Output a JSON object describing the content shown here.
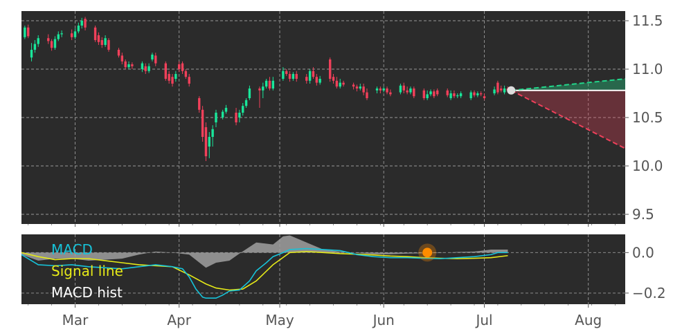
{
  "colors": {
    "panel_bg": "#2b2b2b",
    "grid": "#9a9a9a",
    "up": "#19e69a",
    "down": "#f0405a",
    "macd": "#17c3d9",
    "signal": "#e6ea18",
    "hist": "#a0a0a0",
    "marker": "#ff8c00",
    "last_point": "#dddddd",
    "upper_proj": "#22d68a",
    "lower_proj": "#f0405a"
  },
  "chart_data": [
    {
      "type": "candlestick",
      "title": "",
      "xlabel": "",
      "ylabel": "",
      "x_ticks": [
        "Mar",
        "Apr",
        "May",
        "Jun",
        "Jul",
        "Aug"
      ],
      "x_tick_days": [
        16,
        47,
        77,
        108,
        138,
        169
      ],
      "xlim": [
        0,
        180
      ],
      "ylim": [
        9.4,
        11.6
      ],
      "y_ticks": [
        9.5,
        10.0,
        10.5,
        11.0,
        11.5
      ],
      "grid": true,
      "candles": [
        [
          1,
          11.33,
          11.43,
          11.45,
          11.31
        ],
        [
          2,
          11.43,
          11.34,
          11.46,
          11.32
        ],
        [
          3,
          11.12,
          11.2,
          11.27,
          11.08
        ],
        [
          4,
          11.2,
          11.26,
          11.3,
          11.17
        ],
        [
          5,
          11.26,
          11.32,
          11.35,
          11.23
        ],
        [
          8,
          11.32,
          11.29,
          11.36,
          11.26
        ],
        [
          9,
          11.29,
          11.22,
          11.31,
          11.19
        ],
        [
          10,
          11.22,
          11.31,
          11.34,
          11.2
        ],
        [
          11,
          11.31,
          11.36,
          11.39,
          11.29
        ],
        [
          12,
          11.36,
          11.37,
          11.4,
          11.33
        ],
        [
          15,
          11.37,
          11.33,
          11.41,
          11.3
        ],
        [
          16,
          11.33,
          11.39,
          11.42,
          11.31
        ],
        [
          17,
          11.39,
          11.45,
          11.48,
          11.37
        ],
        [
          18,
          11.45,
          11.5,
          11.53,
          11.42
        ],
        [
          19,
          11.52,
          11.43,
          11.54,
          11.4
        ],
        [
          22,
          11.43,
          11.3,
          11.45,
          11.28
        ],
        [
          23,
          11.35,
          11.28,
          11.38,
          11.25
        ],
        [
          24,
          11.3,
          11.25,
          11.33,
          11.22
        ],
        [
          25,
          11.25,
          11.32,
          11.35,
          11.23
        ],
        [
          26,
          11.3,
          11.2,
          11.32,
          11.18
        ],
        [
          29,
          11.2,
          11.14,
          11.22,
          11.12
        ],
        [
          30,
          11.14,
          11.08,
          11.17,
          11.05
        ],
        [
          31,
          11.08,
          11.02,
          11.1,
          11.0
        ],
        [
          32,
          11.02,
          11.05,
          11.08,
          11.0
        ],
        [
          33,
          11.05,
          11.03,
          11.07,
          11.0
        ],
        [
          36,
          11.0,
          11.06,
          11.08,
          10.97
        ],
        [
          37,
          11.03,
          10.98,
          11.06,
          10.95
        ],
        [
          38,
          10.98,
          11.03,
          11.06,
          10.96
        ],
        [
          39,
          11.1,
          11.15,
          11.17,
          11.08
        ],
        [
          40,
          11.14,
          11.06,
          11.17,
          11.03
        ],
        [
          43,
          11.06,
          10.9,
          11.08,
          10.88
        ],
        [
          44,
          10.95,
          10.88,
          10.98,
          10.85
        ],
        [
          45,
          10.92,
          10.85,
          10.95,
          10.82
        ],
        [
          46,
          10.9,
          10.95,
          10.98,
          10.87
        ],
        [
          47,
          11.05,
          11.0,
          11.08,
          10.97
        ],
        [
          48,
          11.06,
          10.98,
          11.08,
          10.95
        ],
        [
          49,
          10.98,
          10.92,
          11.0,
          10.9
        ],
        [
          50,
          10.92,
          10.85,
          10.95,
          10.82
        ],
        [
          53,
          10.7,
          10.58,
          10.72,
          10.55
        ],
        [
          54,
          10.58,
          10.3,
          10.62,
          10.25
        ],
        [
          55,
          10.4,
          10.1,
          10.45,
          10.05
        ],
        [
          56,
          10.2,
          10.3,
          10.35,
          10.08
        ],
        [
          57,
          10.3,
          10.38,
          10.42,
          10.2
        ],
        [
          58,
          10.45,
          10.55,
          10.58,
          10.4
        ],
        [
          60,
          10.5,
          10.56,
          10.58,
          10.48
        ],
        [
          61,
          10.56,
          10.6,
          10.63,
          10.54
        ],
        [
          64,
          10.55,
          10.45,
          10.6,
          10.42
        ],
        [
          65,
          10.5,
          10.55,
          10.58,
          10.45
        ],
        [
          66,
          10.55,
          10.62,
          10.65,
          10.52
        ],
        [
          67,
          10.62,
          10.68,
          10.7,
          10.6
        ],
        [
          68,
          10.7,
          10.8,
          10.83,
          10.68
        ],
        [
          71,
          10.8,
          10.78,
          10.82,
          10.6
        ],
        [
          72,
          10.78,
          10.82,
          10.86,
          10.7
        ],
        [
          73,
          10.82,
          10.88,
          10.9,
          10.8
        ],
        [
          74,
          10.88,
          10.8,
          10.92,
          10.78
        ],
        [
          75,
          10.8,
          10.88,
          10.92,
          10.78
        ],
        [
          78,
          10.9,
          10.98,
          11.02,
          10.88
        ],
        [
          79,
          10.98,
          10.95,
          11.0,
          10.93
        ],
        [
          80,
          10.95,
          10.9,
          10.98,
          10.87
        ],
        [
          81,
          10.9,
          10.95,
          10.97,
          10.88
        ],
        [
          82,
          10.95,
          10.9,
          10.98,
          10.87
        ],
        [
          85,
          10.92,
          10.88,
          10.95,
          10.85
        ],
        [
          86,
          10.88,
          10.98,
          11.0,
          10.85
        ],
        [
          87,
          10.98,
          10.92,
          11.02,
          10.9
        ],
        [
          88,
          10.92,
          10.86,
          10.95,
          10.83
        ],
        [
          89,
          10.86,
          10.9,
          10.93,
          10.84
        ],
        [
          92,
          11.1,
          10.9,
          11.12,
          10.87
        ],
        [
          93,
          10.92,
          10.88,
          10.95,
          10.85
        ],
        [
          94,
          10.88,
          10.82,
          10.92,
          10.8
        ],
        [
          95,
          10.82,
          10.86,
          10.9,
          10.8
        ],
        [
          96,
          10.86,
          10.84,
          10.88,
          10.82
        ],
        [
          99,
          10.84,
          10.82,
          10.86,
          10.79
        ],
        [
          100,
          10.82,
          10.8,
          10.84,
          10.77
        ],
        [
          101,
          10.8,
          10.82,
          10.85,
          10.78
        ],
        [
          102,
          10.82,
          10.76,
          10.85,
          10.73
        ],
        [
          103,
          10.76,
          10.7,
          10.8,
          10.68
        ],
        [
          106,
          10.78,
          10.8,
          10.82,
          10.75
        ],
        [
          107,
          10.8,
          10.78,
          10.82,
          10.75
        ],
        [
          108,
          10.78,
          10.8,
          10.82,
          10.76
        ],
        [
          109,
          10.8,
          10.76,
          10.82,
          10.74
        ],
        [
          110,
          10.76,
          10.74,
          10.79,
          10.72
        ],
        [
          113,
          10.76,
          10.83,
          10.85,
          10.74
        ],
        [
          114,
          10.83,
          10.78,
          10.86,
          10.75
        ],
        [
          115,
          10.78,
          10.76,
          10.82,
          10.74
        ],
        [
          116,
          10.76,
          10.8,
          10.82,
          10.74
        ],
        [
          117,
          10.8,
          10.72,
          10.82,
          10.7
        ],
        [
          120,
          10.78,
          10.7,
          10.8,
          10.68
        ],
        [
          121,
          10.7,
          10.74,
          10.78,
          10.68
        ],
        [
          122,
          10.74,
          10.77,
          10.79,
          10.72
        ],
        [
          123,
          10.77,
          10.72,
          10.79,
          10.7
        ],
        [
          124,
          10.78,
          10.74,
          10.8,
          10.72
        ],
        [
          127,
          10.78,
          10.73,
          10.8,
          10.71
        ],
        [
          128,
          10.7,
          10.75,
          10.78,
          10.68
        ],
        [
          129,
          10.75,
          10.72,
          10.78,
          10.7
        ],
        [
          130,
          10.72,
          10.73,
          10.75,
          10.7
        ],
        [
          131,
          10.72,
          10.75,
          10.77,
          10.7
        ],
        [
          134,
          10.7,
          10.76,
          10.78,
          10.68
        ],
        [
          135,
          10.76,
          10.73,
          10.78,
          10.71
        ],
        [
          136,
          10.73,
          10.75,
          10.77,
          10.71
        ],
        [
          137,
          10.75,
          10.74,
          10.77,
          10.72
        ],
        [
          138,
          10.72,
          10.7,
          10.75,
          10.68
        ],
        [
          141,
          10.75,
          10.79,
          10.82,
          10.73
        ],
        [
          142,
          10.86,
          10.76,
          10.88,
          10.74
        ],
        [
          143,
          10.8,
          10.78,
          10.83,
          10.76
        ],
        [
          144,
          10.76,
          10.8,
          10.83,
          10.74
        ],
        [
          145,
          10.8,
          10.78,
          10.82,
          10.76
        ]
      ],
      "last_point": [
        146,
        10.78
      ],
      "projections": {
        "upper_end": [
          180,
          10.9
        ],
        "lower_end": [
          180,
          10.18
        ],
        "level": 10.78
      }
    },
    {
      "type": "line",
      "title": "",
      "xlabel": "",
      "ylabel": "",
      "xlim": [
        0,
        180
      ],
      "ylim": [
        -0.255,
        0.09
      ],
      "y_ticks": [
        0.0,
        -0.2
      ],
      "y_tick_labels": [
        "0.0",
        "−0.2"
      ],
      "grid": true,
      "legend": "top-left",
      "series": [
        {
          "name": "MACD",
          "x": [
            0,
            5,
            10,
            15,
            20,
            25,
            30,
            35,
            40,
            45,
            48,
            50,
            52,
            54,
            55,
            58,
            60,
            62,
            65,
            68,
            70,
            73,
            75,
            78,
            80,
            85,
            90,
            95,
            100,
            105,
            110,
            115,
            120,
            125,
            130,
            135,
            140,
            142,
            145
          ],
          "values": [
            -0.01,
            -0.06,
            -0.065,
            -0.06,
            -0.07,
            -0.075,
            -0.08,
            -0.07,
            -0.06,
            -0.07,
            -0.08,
            -0.12,
            -0.18,
            -0.22,
            -0.225,
            -0.225,
            -0.21,
            -0.19,
            -0.185,
            -0.14,
            -0.09,
            -0.05,
            -0.02,
            0.0,
            0.015,
            0.02,
            0.015,
            0.01,
            -0.01,
            -0.02,
            -0.025,
            -0.025,
            -0.028,
            -0.03,
            -0.025,
            -0.02,
            -0.01,
            0.0,
            0.0
          ]
        },
        {
          "name": "Signal line",
          "x": [
            0,
            5,
            10,
            15,
            20,
            25,
            30,
            35,
            40,
            45,
            50,
            55,
            58,
            62,
            66,
            70,
            75,
            80,
            85,
            90,
            95,
            100,
            105,
            110,
            115,
            120,
            125,
            130,
            135,
            140,
            145
          ],
          "values": [
            0.0,
            -0.02,
            -0.035,
            -0.03,
            -0.03,
            -0.04,
            -0.05,
            -0.06,
            -0.065,
            -0.07,
            -0.11,
            -0.155,
            -0.175,
            -0.185,
            -0.18,
            -0.14,
            -0.06,
            0.0,
            0.005,
            0.0,
            -0.005,
            -0.008,
            -0.012,
            -0.017,
            -0.02,
            -0.025,
            -0.028,
            -0.03,
            -0.028,
            -0.025,
            -0.015
          ]
        },
        {
          "name": "MACD hist",
          "x": [
            0,
            5,
            10,
            15,
            20,
            25,
            30,
            35,
            40,
            45,
            50,
            55,
            58,
            62,
            65,
            70,
            75,
            78,
            80,
            85,
            90,
            95,
            100,
            105,
            110,
            115,
            120,
            125,
            130,
            135,
            140,
            145
          ],
          "values": [
            -0.01,
            -0.04,
            -0.03,
            -0.03,
            -0.04,
            -0.035,
            -0.03,
            -0.01,
            0.005,
            0.0,
            -0.01,
            -0.075,
            -0.05,
            -0.04,
            -0.005,
            0.05,
            0.04,
            0.08,
            0.085,
            0.05,
            0.015,
            0.005,
            -0.002,
            -0.008,
            -0.008,
            -0.005,
            -0.003,
            -0.002,
            0.003,
            0.005,
            0.015,
            0.015
          ]
        }
      ],
      "marker": [
        121,
        0.0
      ]
    }
  ]
}
